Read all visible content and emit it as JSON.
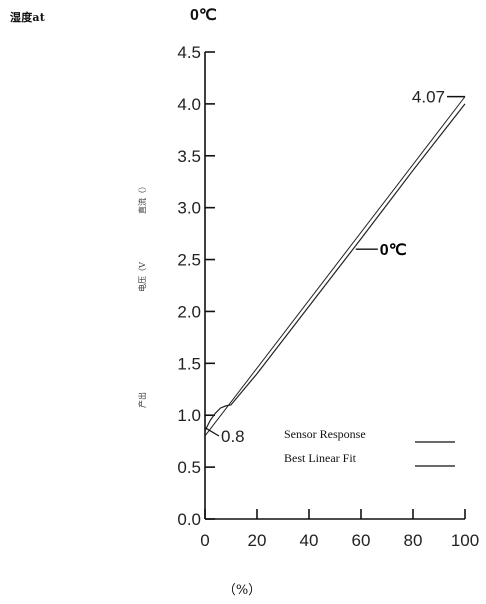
{
  "header": {
    "left_label": "湿度at",
    "title": "0℃"
  },
  "chart_data": {
    "type": "line",
    "title": "0℃",
    "xlabel": "（%）",
    "ylabel_parts": [
      "直流（）",
      "电压（V",
      "产出"
    ],
    "xlim": [
      0,
      100
    ],
    "ylim": [
      0,
      4.5
    ],
    "x_ticks": [
      0,
      20,
      40,
      60,
      80,
      100
    ],
    "y_ticks": [
      0.0,
      0.5,
      1.0,
      1.5,
      2.0,
      2.5,
      3.0,
      3.5,
      4.0,
      4.5
    ],
    "x_tick_labels": [
      "0",
      "20",
      "40",
      "60",
      "80",
      "100"
    ],
    "y_tick_labels": [
      "0.0",
      "0.5",
      "1.0",
      "1.5",
      "2.0",
      "2.5",
      "3.0",
      "3.5",
      "4.0",
      "4.5"
    ],
    "series": [
      {
        "name": "Sensor Response",
        "x": [
          0,
          2,
          4,
          6,
          8,
          10,
          20,
          40,
          60,
          80,
          100
        ],
        "y": [
          0.85,
          0.95,
          1.02,
          1.07,
          1.09,
          1.1,
          1.4,
          2.05,
          2.7,
          3.36,
          4.0
        ]
      },
      {
        "name": "Best Linear Fit",
        "x": [
          0,
          100
        ],
        "y": [
          0.8,
          4.07
        ]
      }
    ],
    "annotations": [
      {
        "text": "4.07",
        "x": 100,
        "y": 4.07
      },
      {
        "text": "0.8",
        "x": 0,
        "y": 0.8
      },
      {
        "text": "0℃",
        "x": 58,
        "y": 2.6
      }
    ],
    "legend": {
      "position": "bottom-right",
      "entries": [
        "Sensor Response",
        "Best Linear Fit"
      ]
    },
    "grid": false
  }
}
